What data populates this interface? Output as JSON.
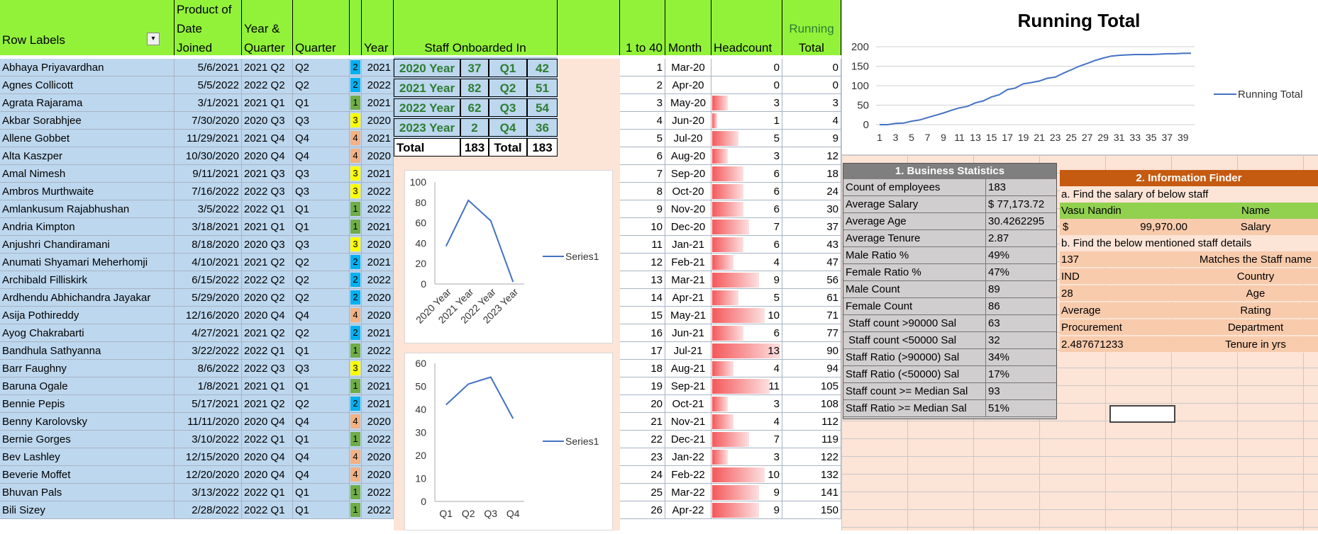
{
  "headers": {
    "row_labels": "Row Labels",
    "product_date": [
      "Product of",
      "Date",
      "Joined"
    ],
    "year_quarter": [
      "Year &",
      "Quarter"
    ],
    "quarter": "Quarter",
    "year": "Year",
    "staff_onboarded": "Staff Onboarded In",
    "one_to_40": "1 to 40",
    "month": "Month",
    "headcount": "Headcount",
    "running_total": [
      "Running",
      "Total"
    ]
  },
  "staff_rows": [
    {
      "name": "Abhaya Priyavardhan",
      "date": "5/6/2021",
      "yq": "2021 Q2",
      "q": "Q2",
      "qn": "2",
      "year": "2021"
    },
    {
      "name": "Agnes Collicott",
      "date": "5/5/2022",
      "yq": "2022 Q2",
      "q": "Q2",
      "qn": "2",
      "year": "2022"
    },
    {
      "name": "Agrata Rajarama",
      "date": "3/1/2021",
      "yq": "2021 Q1",
      "q": "Q1",
      "qn": "1",
      "year": "2021"
    },
    {
      "name": "Akbar Sorabhjee",
      "date": "7/30/2020",
      "yq": "2020 Q3",
      "q": "Q3",
      "qn": "3",
      "year": "2020"
    },
    {
      "name": "Allene Gobbet",
      "date": "11/29/2021",
      "yq": "2021 Q4",
      "q": "Q4",
      "qn": "4",
      "year": "2021"
    },
    {
      "name": "Alta Kaszper",
      "date": "10/30/2020",
      "yq": "2020 Q4",
      "q": "Q4",
      "qn": "4",
      "year": "2020"
    },
    {
      "name": "Amal Nimesh",
      "date": "9/11/2021",
      "yq": "2021 Q3",
      "q": "Q3",
      "qn": "3",
      "year": "2021"
    },
    {
      "name": "Ambros Murthwaite",
      "date": "7/16/2022",
      "yq": "2022 Q3",
      "q": "Q3",
      "qn": "3",
      "year": "2022"
    },
    {
      "name": "Amlankusum Rajabhushan",
      "date": "3/5/2022",
      "yq": "2022 Q1",
      "q": "Q1",
      "qn": "1",
      "year": "2022"
    },
    {
      "name": "Andria Kimpton",
      "date": "3/18/2021",
      "yq": "2021 Q1",
      "q": "Q1",
      "qn": "1",
      "year": "2021"
    },
    {
      "name": "Anjushri Chandiramani",
      "date": "8/18/2020",
      "yq": "2020 Q3",
      "q": "Q3",
      "qn": "3",
      "year": "2020"
    },
    {
      "name": "Anumati Shyamari Meherhomji",
      "date": "4/10/2021",
      "yq": "2021 Q2",
      "q": "Q2",
      "qn": "2",
      "year": "2021"
    },
    {
      "name": "Archibald Filliskirk",
      "date": "6/15/2022",
      "yq": "2022 Q2",
      "q": "Q2",
      "qn": "2",
      "year": "2022"
    },
    {
      "name": "Ardhendu Abhichandra Jayakar",
      "date": "5/29/2020",
      "yq": "2020 Q2",
      "q": "Q2",
      "qn": "2",
      "year": "2020"
    },
    {
      "name": "Asija Pothireddy",
      "date": "12/16/2020",
      "yq": "2020 Q4",
      "q": "Q4",
      "qn": "4",
      "year": "2020"
    },
    {
      "name": "Ayog Chakrabarti",
      "date": "4/27/2021",
      "yq": "2021 Q2",
      "q": "Q2",
      "qn": "2",
      "year": "2021"
    },
    {
      "name": "Bandhula Sathyanna",
      "date": "3/22/2022",
      "yq": "2022 Q1",
      "q": "Q1",
      "qn": "1",
      "year": "2022"
    },
    {
      "name": "Barr Faughny",
      "date": "8/6/2022",
      "yq": "2022 Q3",
      "q": "Q3",
      "qn": "3",
      "year": "2022"
    },
    {
      "name": "Baruna Ogale",
      "date": "1/8/2021",
      "yq": "2021 Q1",
      "q": "Q1",
      "qn": "1",
      "year": "2021"
    },
    {
      "name": "Bennie Pepis",
      "date": "5/17/2021",
      "yq": "2021 Q2",
      "q": "Q2",
      "qn": "2",
      "year": "2021"
    },
    {
      "name": "Benny Karolovsky",
      "date": "11/11/2020",
      "yq": "2020 Q4",
      "q": "Q4",
      "qn": "4",
      "year": "2020"
    },
    {
      "name": "Bernie Gorges",
      "date": "3/10/2022",
      "yq": "2022 Q1",
      "q": "Q1",
      "qn": "1",
      "year": "2022"
    },
    {
      "name": "Bev Lashley",
      "date": "12/15/2020",
      "yq": "2020 Q4",
      "q": "Q4",
      "qn": "4",
      "year": "2020"
    },
    {
      "name": "Beverie Moffet",
      "date": "12/20/2020",
      "yq": "2020 Q4",
      "q": "Q4",
      "qn": "4",
      "year": "2020"
    },
    {
      "name": "Bhuvan Pals",
      "date": "3/13/2022",
      "yq": "2022 Q1",
      "q": "Q1",
      "qn": "1",
      "year": "2022"
    },
    {
      "name": "Bili Sizey",
      "date": "2/28/2022",
      "yq": "2022 Q1",
      "q": "Q1",
      "qn": "1",
      "year": "2022"
    }
  ],
  "onboarded": {
    "years": [
      {
        "label": "2020 Year",
        "count": "37"
      },
      {
        "label": "2021 Year",
        "count": "82"
      },
      {
        "label": "2022 Year",
        "count": "62"
      },
      {
        "label": "2023 Year",
        "count": "2"
      }
    ],
    "quarters": [
      {
        "label": "Q1",
        "count": "42"
      },
      {
        "label": "Q2",
        "count": "51"
      },
      {
        "label": "Q3",
        "count": "54"
      },
      {
        "label": "Q4",
        "count": "36"
      }
    ],
    "total_label": "Total",
    "total_year": "183",
    "total_q_label": "Total",
    "total_q": "183"
  },
  "monthly": [
    {
      "n": "1",
      "m": "Mar-20",
      "h": 0,
      "rt": "0"
    },
    {
      "n": "2",
      "m": "Apr-20",
      "h": 0,
      "rt": "0"
    },
    {
      "n": "3",
      "m": "May-20",
      "h": 3,
      "rt": "3"
    },
    {
      "n": "4",
      "m": "Jun-20",
      "h": 1,
      "rt": "4"
    },
    {
      "n": "5",
      "m": "Jul-20",
      "h": 5,
      "rt": "9"
    },
    {
      "n": "6",
      "m": "Aug-20",
      "h": 3,
      "rt": "12"
    },
    {
      "n": "7",
      "m": "Sep-20",
      "h": 6,
      "rt": "18"
    },
    {
      "n": "8",
      "m": "Oct-20",
      "h": 6,
      "rt": "24"
    },
    {
      "n": "9",
      "m": "Nov-20",
      "h": 6,
      "rt": "30"
    },
    {
      "n": "10",
      "m": "Dec-20",
      "h": 7,
      "rt": "37"
    },
    {
      "n": "11",
      "m": "Jan-21",
      "h": 6,
      "rt": "43"
    },
    {
      "n": "12",
      "m": "Feb-21",
      "h": 4,
      "rt": "47"
    },
    {
      "n": "13",
      "m": "Mar-21",
      "h": 9,
      "rt": "56"
    },
    {
      "n": "14",
      "m": "Apr-21",
      "h": 5,
      "rt": "61"
    },
    {
      "n": "15",
      "m": "May-21",
      "h": 10,
      "rt": "71"
    },
    {
      "n": "16",
      "m": "Jun-21",
      "h": 6,
      "rt": "77"
    },
    {
      "n": "17",
      "m": "Jul-21",
      "h": 13,
      "rt": "90"
    },
    {
      "n": "18",
      "m": "Aug-21",
      "h": 4,
      "rt": "94"
    },
    {
      "n": "19",
      "m": "Sep-21",
      "h": 11,
      "rt": "105"
    },
    {
      "n": "20",
      "m": "Oct-21",
      "h": 3,
      "rt": "108"
    },
    {
      "n": "21",
      "m": "Nov-21",
      "h": 4,
      "rt": "112"
    },
    {
      "n": "22",
      "m": "Dec-21",
      "h": 7,
      "rt": "119"
    },
    {
      "n": "23",
      "m": "Jan-22",
      "h": 3,
      "rt": "122"
    },
    {
      "n": "24",
      "m": "Feb-22",
      "h": 10,
      "rt": "132"
    },
    {
      "n": "25",
      "m": "Mar-22",
      "h": 9,
      "rt": "141"
    },
    {
      "n": "26",
      "m": "Apr-22",
      "h": 9,
      "rt": "150"
    }
  ],
  "stats": {
    "title": "1. Business Statistics",
    "rows": [
      {
        "k": "Count of employees",
        "v": "183"
      },
      {
        "k": "Average Salary",
        "v": "$ 77,173.72"
      },
      {
        "k": "Average Age",
        "v": "30.4262295"
      },
      {
        "k": "Average Tenure",
        "v": "2.87"
      },
      {
        "k": "Male Ratio %",
        "v": "49%"
      },
      {
        "k": "Female Ratio %",
        "v": "47%"
      },
      {
        "k": "Male Count",
        "v": "89"
      },
      {
        "k": "Female Count",
        "v": "86"
      },
      {
        "k": " Staff count >90000 Sal",
        "v": "63"
      },
      {
        "k": " Staff count <50000 Sal",
        "v": "32"
      },
      {
        "k": "Staff Ratio (>90000) Sal",
        "v": "34%"
      },
      {
        "k": "Staff Ratio (<50000) Sal",
        "v": "17%"
      },
      {
        "k": "Staff count >= Median Sal",
        "v": "93"
      },
      {
        "k": "Staff Ratio >= Median Sal",
        "v": "51%"
      }
    ]
  },
  "finder": {
    "title": "2. Information Finder",
    "a_label": "a. Find the salary of below staff",
    "a_name": "Vasu Nandin",
    "a_name_hdr": "Name",
    "a_salary_symbol": "$",
    "a_salary": "99,970.00",
    "a_salary_hdr": "Salary",
    "b_label": "b. Find the below mentioned staff details",
    "b_rows": [
      {
        "v": "137",
        "k": "Matches the Staff name"
      },
      {
        "v": "IND",
        "k": "Country"
      },
      {
        "v": "28",
        "k": "Age"
      },
      {
        "v": "Average",
        "k": "Rating"
      },
      {
        "v": "Procurement",
        "k": "Department"
      },
      {
        "v": "2.487671233",
        "k": "Tenure in yrs"
      }
    ]
  },
  "chart_data": [
    {
      "type": "line",
      "title": "Running Total",
      "series": [
        {
          "name": "Running Total",
          "values": [
            0,
            0,
            3,
            4,
            9,
            12,
            18,
            24,
            30,
            37,
            43,
            47,
            56,
            61,
            71,
            77,
            90,
            94,
            105,
            108,
            112,
            119,
            122,
            132,
            141,
            150,
            157,
            165,
            171,
            176,
            178,
            179,
            180,
            180,
            180,
            181,
            182,
            182,
            183,
            183
          ]
        }
      ],
      "x": [
        1,
        2,
        3,
        4,
        5,
        6,
        7,
        8,
        9,
        10,
        11,
        12,
        13,
        14,
        15,
        16,
        17,
        18,
        19,
        20,
        21,
        22,
        23,
        24,
        25,
        26,
        27,
        28,
        29,
        30,
        31,
        32,
        33,
        34,
        35,
        36,
        37,
        38,
        39,
        40
      ],
      "x_tick_labels": [
        "1",
        "3",
        "5",
        "7",
        "9",
        "11",
        "13",
        "15",
        "17",
        "19",
        "21",
        "23",
        "25",
        "27",
        "29",
        "31",
        "33",
        "35",
        "37",
        "39"
      ],
      "y_ticks": [
        "0",
        "50",
        "100",
        "150",
        "200"
      ],
      "ylim": [
        0,
        200
      ],
      "grid": true,
      "legend": "right"
    },
    {
      "type": "line",
      "categories": [
        "2020 Year",
        "2021 Year",
        "2022 Year",
        "2023 Year"
      ],
      "series": [
        {
          "name": "Series1",
          "values": [
            37,
            82,
            62,
            2
          ]
        }
      ],
      "y_ticks": [
        "0",
        "20",
        "40",
        "60",
        "80",
        "100"
      ],
      "ylim": [
        0,
        100
      ],
      "grid": false,
      "legend": "right"
    },
    {
      "type": "line",
      "categories": [
        "Q1",
        "Q2",
        "Q3",
        "Q4"
      ],
      "series": [
        {
          "name": "Series1",
          "values": [
            42,
            51,
            54,
            36
          ]
        }
      ],
      "y_ticks": [
        "0",
        "10",
        "20",
        "30",
        "40",
        "50",
        "60"
      ],
      "ylim": [
        0,
        60
      ],
      "grid": false,
      "legend": "right"
    }
  ],
  "colors": {
    "header_green": "#92f23a",
    "row_blue": "#bdd7ee",
    "peach": "#fce4d6",
    "finder_title": "#c55a11",
    "finder_green": "#92d050",
    "stats_title": "#7f7f7f",
    "stats_bg": "#d0cece"
  }
}
